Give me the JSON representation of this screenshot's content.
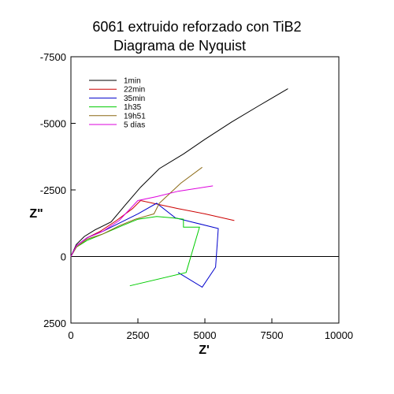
{
  "chart_data": {
    "type": "line",
    "title": "6061 extruido reforzado con TiB2",
    "subtitle": "Diagrama de Nyquist",
    "xlabel": "Z'",
    "ylabel": "Z\"",
    "xlim": [
      0,
      10000
    ],
    "ylim": [
      2500,
      -7500
    ],
    "x_ticks": [
      0,
      2500,
      5000,
      7500,
      10000
    ],
    "x_tick_labels": [
      "0",
      "2500",
      "5000",
      "7500",
      "10000"
    ],
    "y_ticks": [
      -7500,
      -5000,
      -2500,
      0,
      2500
    ],
    "y_tick_labels": [
      "-7500",
      "-5000",
      "-2500",
      "0",
      "2500"
    ],
    "grid": false,
    "zero_line": true,
    "legend_position": "top-left",
    "series": [
      {
        "name": "1min",
        "color": "#000000",
        "points": [
          [
            0,
            0
          ],
          [
            200,
            -450
          ],
          [
            500,
            -750
          ],
          [
            900,
            -1000
          ],
          [
            1500,
            -1300
          ],
          [
            2000,
            -1900
          ],
          [
            2600,
            -2600
          ],
          [
            3300,
            -3300
          ],
          [
            4200,
            -3850
          ],
          [
            5000,
            -4400
          ],
          [
            6000,
            -5050
          ],
          [
            7000,
            -5650
          ],
          [
            8100,
            -6300
          ]
        ]
      },
      {
        "name": "22min",
        "color": "#cc0000",
        "points": [
          [
            0,
            0
          ],
          [
            200,
            -400
          ],
          [
            600,
            -700
          ],
          [
            1100,
            -950
          ],
          [
            1700,
            -1350
          ],
          [
            2300,
            -1800
          ],
          [
            2600,
            -2100
          ],
          [
            3300,
            -1950
          ],
          [
            4000,
            -1800
          ],
          [
            5000,
            -1600
          ],
          [
            6100,
            -1350
          ]
        ]
      },
      {
        "name": "35min",
        "color": "#0000cc",
        "points": [
          [
            0,
            0
          ],
          [
            200,
            -400
          ],
          [
            600,
            -700
          ],
          [
            1200,
            -950
          ],
          [
            1900,
            -1300
          ],
          [
            2500,
            -1600
          ],
          [
            3200,
            -2000
          ],
          [
            3900,
            -1450
          ],
          [
            4500,
            -1300
          ],
          [
            5500,
            -1050
          ],
          [
            5400,
            400
          ],
          [
            4900,
            1150
          ],
          [
            4000,
            600
          ]
        ]
      },
      {
        "name": "1h35",
        "color": "#00cc00",
        "points": [
          [
            0,
            0
          ],
          [
            200,
            -350
          ],
          [
            600,
            -600
          ],
          [
            1200,
            -850
          ],
          [
            1900,
            -1150
          ],
          [
            2500,
            -1400
          ],
          [
            3200,
            -1500
          ],
          [
            3800,
            -1450
          ],
          [
            4200,
            -1400
          ],
          [
            4200,
            -1100
          ],
          [
            4800,
            -1100
          ],
          [
            4300,
            600
          ],
          [
            2200,
            1100
          ]
        ]
      },
      {
        "name": "19h51",
        "color": "#8b6914",
        "points": [
          [
            0,
            0
          ],
          [
            200,
            -350
          ],
          [
            600,
            -650
          ],
          [
            1200,
            -850
          ],
          [
            1800,
            -1150
          ],
          [
            2400,
            -1400
          ],
          [
            3100,
            -1600
          ],
          [
            3300,
            -2000
          ],
          [
            4100,
            -2750
          ],
          [
            4900,
            -3350
          ]
        ]
      },
      {
        "name": "5 días",
        "color": "#dd00dd",
        "points": [
          [
            0,
            0
          ],
          [
            200,
            -400
          ],
          [
            600,
            -700
          ],
          [
            1200,
            -950
          ],
          [
            1800,
            -1350
          ],
          [
            2500,
            -2100
          ],
          [
            3200,
            -2250
          ],
          [
            4000,
            -2450
          ],
          [
            5300,
            -2650
          ]
        ]
      }
    ]
  }
}
